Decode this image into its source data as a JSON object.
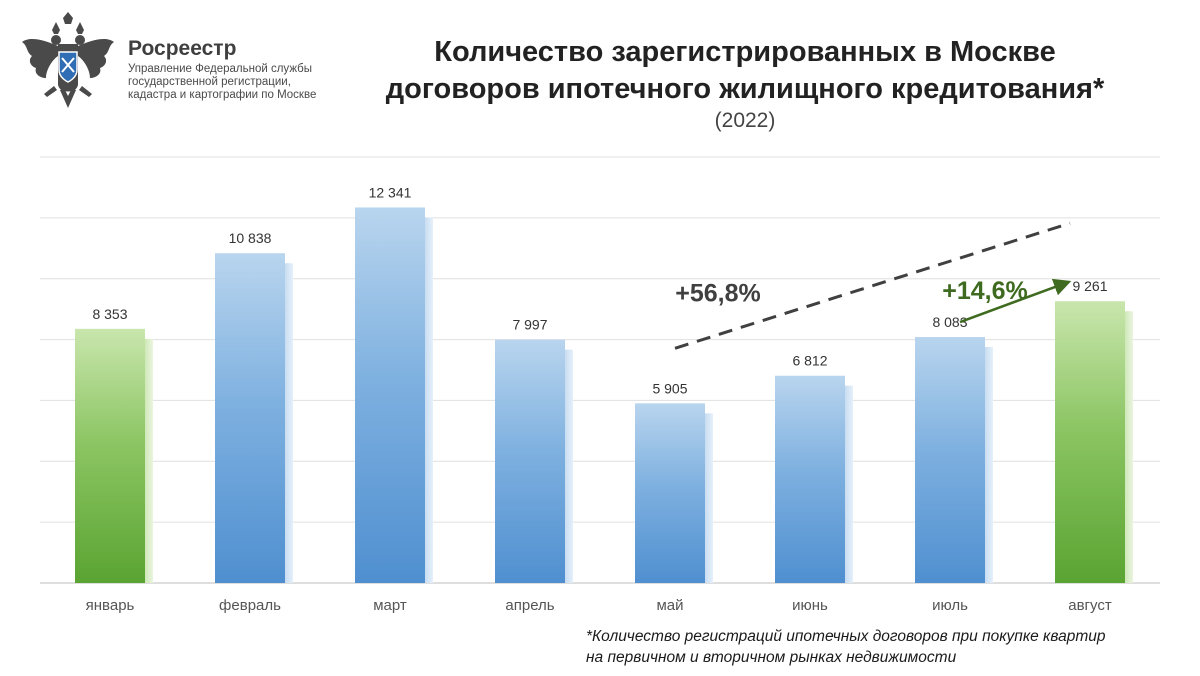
{
  "header": {
    "org_name": "Росреестр",
    "org_desc": [
      "Управление Федеральной службы",
      "государственной регистрации,",
      "кадастра и картографии по Москве"
    ],
    "logo_icon": "double-headed-eagle-emblem-icon"
  },
  "chart_data": {
    "type": "bar",
    "title_lines": [
      "Количество зарегистрированных в Москве",
      "договоров ипотечного жилищного кредитования*"
    ],
    "subtitle": "(2022)",
    "categories": [
      "январь",
      "февраль",
      "март",
      "апрель",
      "май",
      "июнь",
      "июль",
      "август"
    ],
    "values": [
      8353,
      10838,
      12341,
      7997,
      5905,
      6812,
      8083,
      9261
    ],
    "value_labels": [
      "8 353",
      "10 838",
      "12 341",
      "7 997",
      "5 905",
      "6 812",
      "8 083",
      "9 261"
    ],
    "highlighted": [
      true,
      false,
      false,
      false,
      false,
      false,
      false,
      true
    ],
    "ylim": [
      0,
      14000
    ],
    "grid": true,
    "annotations": [
      {
        "text": "+56,8%",
        "style": "dashed-arrow",
        "color": "#404040",
        "from_category": "май",
        "to_category": "август"
      },
      {
        "text": "+14,6%",
        "style": "arrow",
        "color": "#3e6b1f",
        "from_category": "июль",
        "to_category": "август"
      }
    ],
    "colors": {
      "highlight": "#6db33f",
      "normal": "#5b9bd5"
    }
  },
  "footnote": [
    "*Количество регистраций ипотечных договоров при покупке квартир",
    "на первичном и вторичном рынках недвижимости"
  ]
}
